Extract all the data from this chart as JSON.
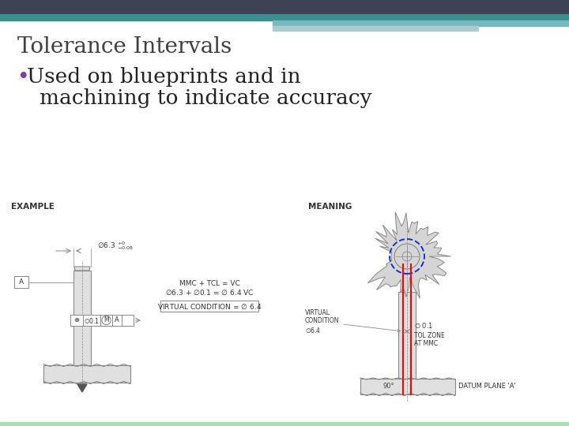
{
  "title": "Tolerance Intervals",
  "bullet_line1": "• Used on blueprints and in",
  "bullet_line2": "   machining to indicate accuracy",
  "title_color": "#404040",
  "bullet_color": "#222222",
  "bullet_dot_color": "#7B3F9E",
  "header_dark": "#3d4354",
  "header_teal": "#3a8f8f",
  "header_light1": "#7ab8bf",
  "header_light2": "#aacdd2",
  "bg_color": "#ffffff",
  "bottom_bar_color": "#a8e0b0",
  "title_fontsize": 20,
  "bullet_fontsize": 19,
  "example_label": "EXAMPLE",
  "meaning_label": "MEANING",
  "diagram_lc": "#888888",
  "diagram_fc": "#e0e0e0"
}
